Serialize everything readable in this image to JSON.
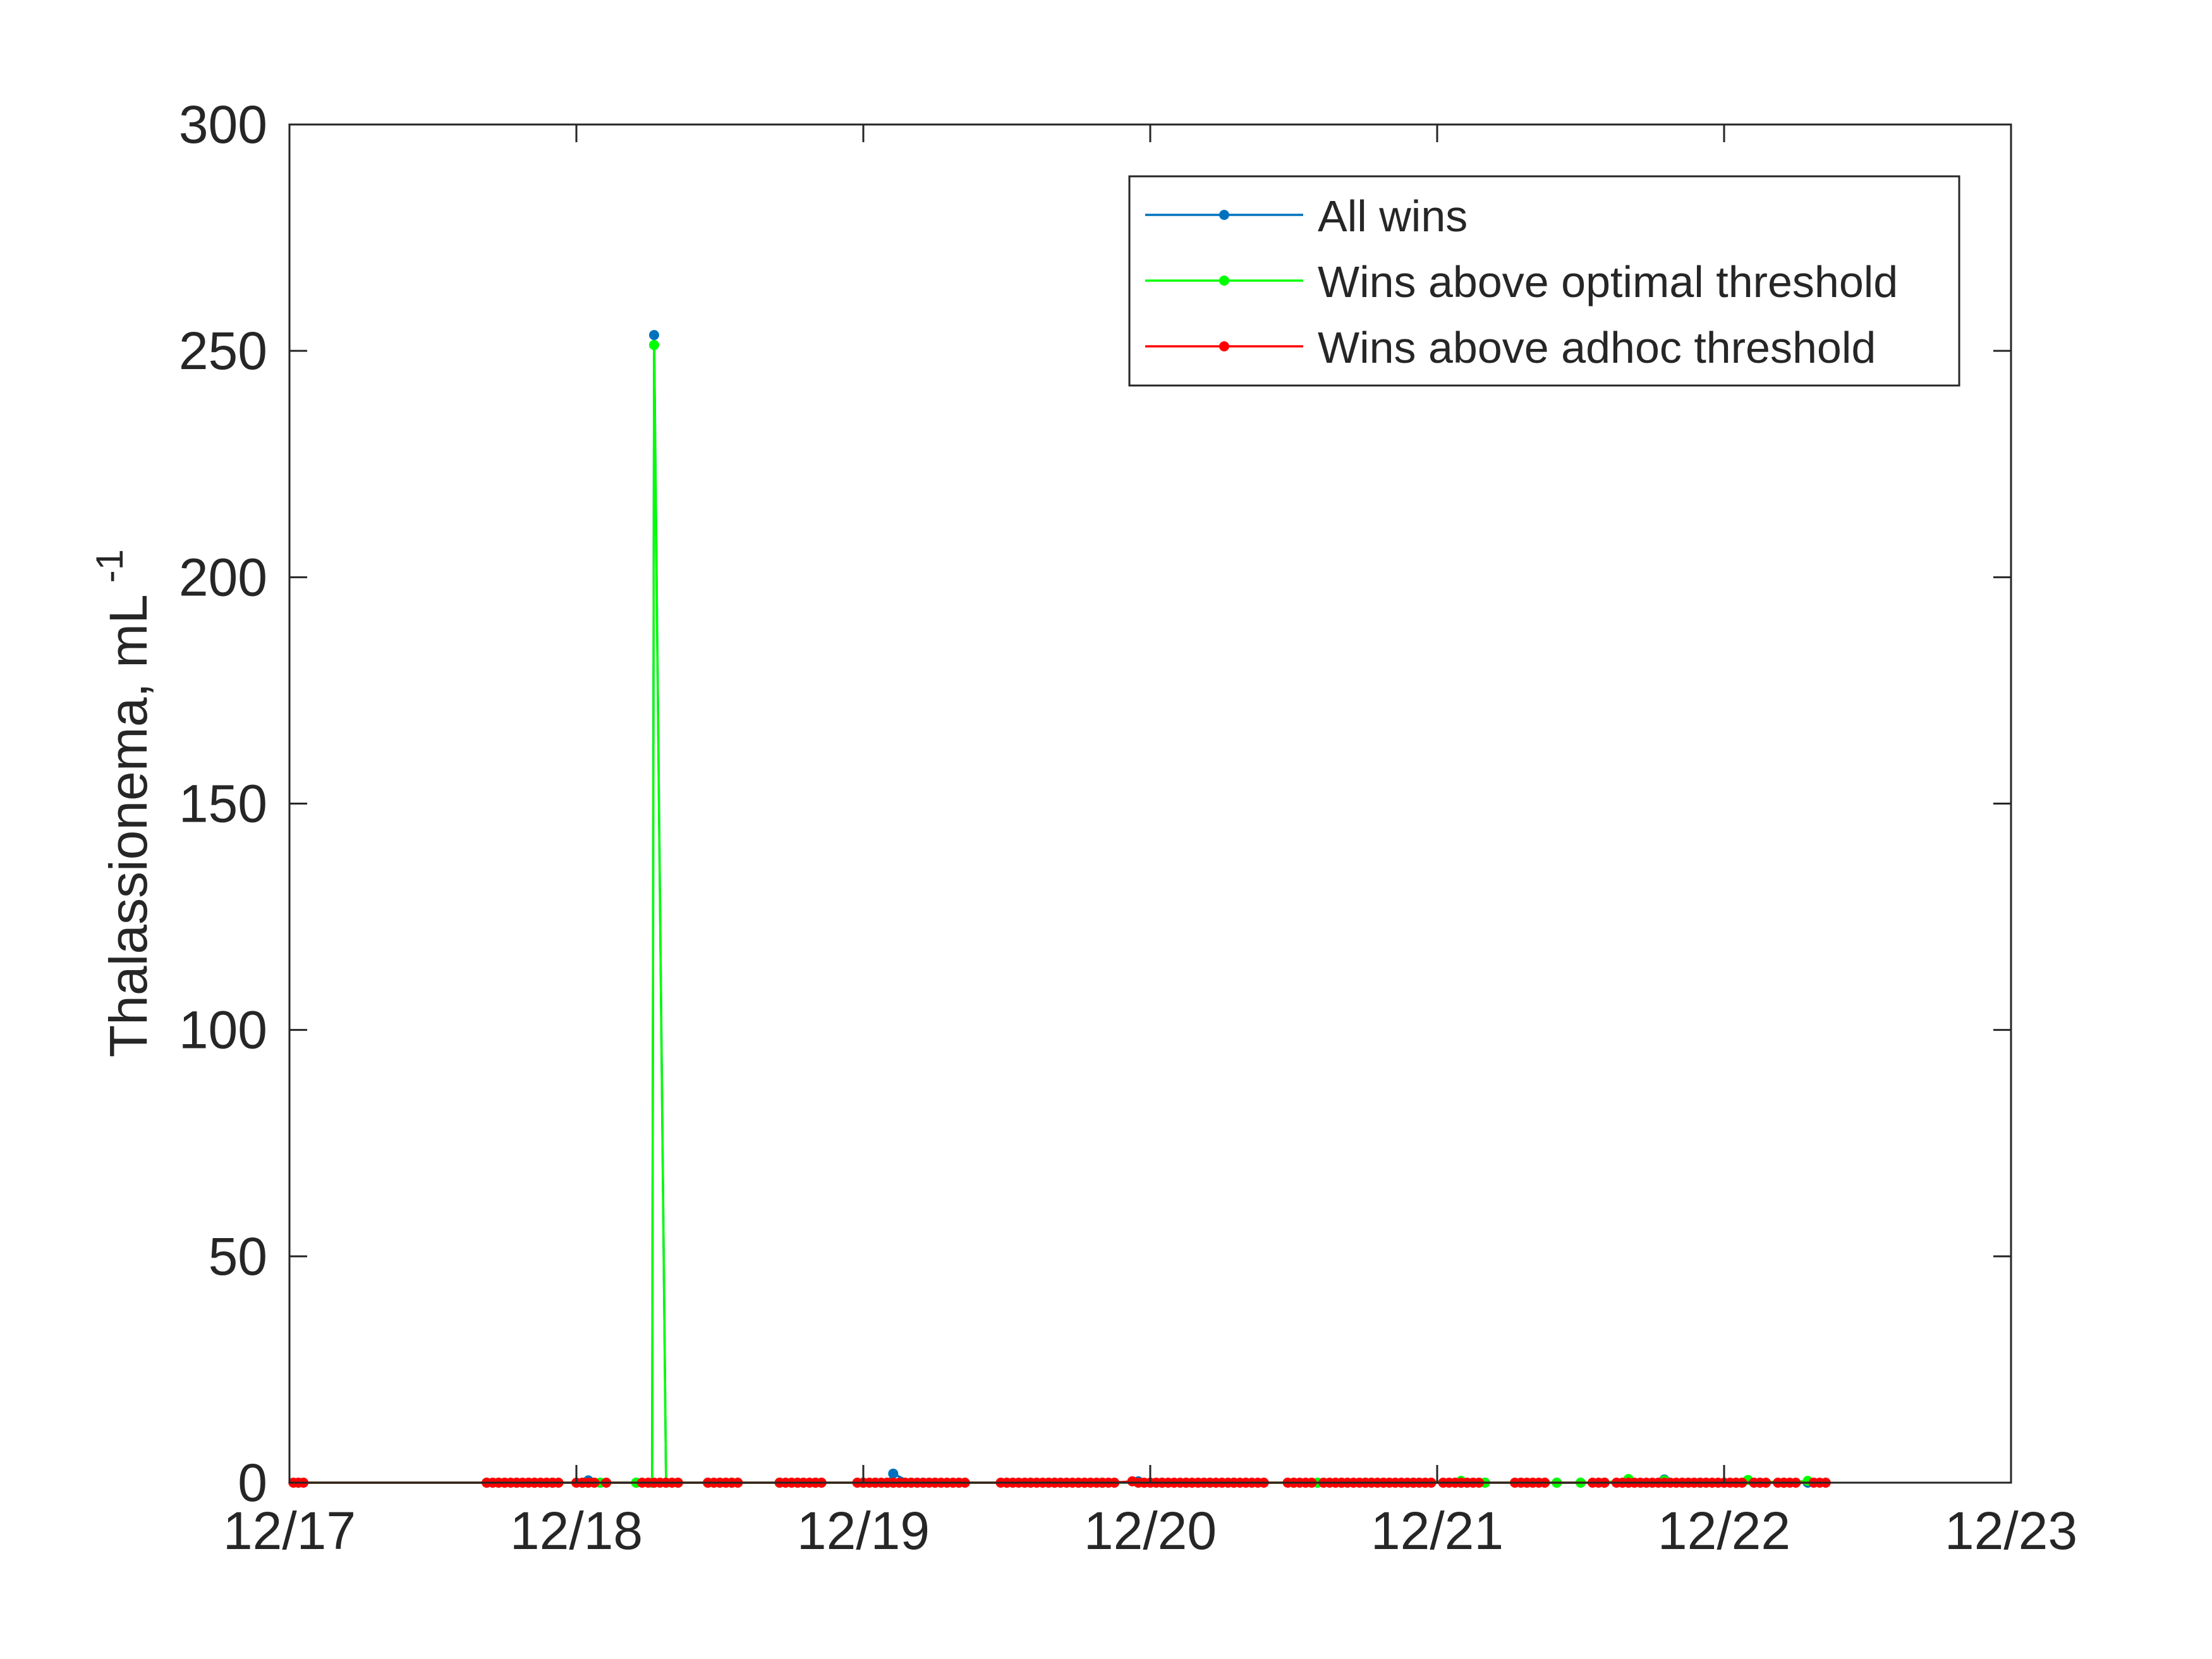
{
  "chart_data": {
    "type": "line",
    "title": "",
    "xlabel": "",
    "ylabel": "Thalassionema, mL",
    "ylabel_superscript": "-1",
    "xlim": [
      "12/17",
      "12/23"
    ],
    "ylim": [
      0,
      300
    ],
    "x_ticks": [
      "12/17",
      "12/18",
      "12/19",
      "12/20",
      "12/21",
      "12/22",
      "12/23"
    ],
    "y_ticks": [
      0,
      50,
      100,
      150,
      200,
      250,
      300
    ],
    "grid": false,
    "legend_position": "top-right",
    "series": [
      {
        "name": "All wins",
        "color": "#0072BD",
        "points": [
          [
            "12/17 00:45",
            0
          ],
          [
            "12/17 16:30",
            0
          ],
          [
            "12/17 17:30",
            0
          ],
          [
            "12/17 19:00",
            0
          ],
          [
            "12/17 20:30",
            0
          ],
          [
            "12/17 22:00",
            0
          ],
          [
            "12/18 00:30",
            0
          ],
          [
            "12/18 01:00",
            0.5
          ],
          [
            "12/18 02:00",
            0
          ],
          [
            "12/18 05:00",
            0
          ],
          [
            "12/18 06:20",
            0
          ],
          [
            "12/18 06:30",
            253.5
          ],
          [
            "12/18 07:30",
            0
          ],
          [
            "12/18 08:30",
            0
          ],
          [
            "12/18 11:00",
            0
          ],
          [
            "12/18 12:00",
            0
          ],
          [
            "12/18 13:00",
            0
          ],
          [
            "12/18 17:00",
            0
          ],
          [
            "12/18 18:30",
            0
          ],
          [
            "12/18 20:00",
            0
          ],
          [
            "12/19 00:00",
            0
          ],
          [
            "12/19 01:00",
            0
          ],
          [
            "12/19 02:00",
            0
          ],
          [
            "12/19 02:30",
            2
          ],
          [
            "12/19 04:00",
            0
          ],
          [
            "12/19 06:00",
            0
          ],
          [
            "12/19 08:00",
            0
          ],
          [
            "12/19 12:00",
            0
          ],
          [
            "12/19 14:00",
            0
          ],
          [
            "12/19 16:00",
            0
          ],
          [
            "12/19 18:00",
            0
          ],
          [
            "12/19 20:00",
            0
          ],
          [
            "12/19 23:00",
            0.3
          ],
          [
            "12/20 01:00",
            0
          ],
          [
            "12/20 03:00",
            0
          ],
          [
            "12/20 05:00",
            0
          ],
          [
            "12/20 07:00",
            0
          ],
          [
            "12/20 12:00",
            0
          ],
          [
            "12/20 14:00",
            0
          ],
          [
            "12/20 16:00",
            0
          ],
          [
            "12/20 18:00",
            0
          ],
          [
            "12/20 22:00",
            0
          ],
          [
            "12/21 02:00",
            0
          ],
          [
            "12/21 04:00",
            0
          ],
          [
            "12/21 10:00",
            0
          ],
          [
            "12/21 12:00",
            0
          ],
          [
            "12/21 14:00",
            0
          ],
          [
            "12/21 16:00",
            0
          ],
          [
            "12/21 19:00",
            0.7
          ],
          [
            "12/21 22:00",
            0
          ],
          [
            "12/22 01:00",
            0
          ],
          [
            "12/22 03:00",
            0
          ],
          [
            "12/22 05:00",
            0
          ],
          [
            "12/22 07:00",
            0
          ]
        ]
      },
      {
        "name": "Wins above optimal threshold",
        "color": "#00FF00",
        "points": [
          [
            "12/17 00:45",
            0
          ],
          [
            "12/17 16:30",
            0
          ],
          [
            "12/17 17:30",
            0
          ],
          [
            "12/17 19:00",
            0
          ],
          [
            "12/17 20:30",
            0
          ],
          [
            "12/17 22:00",
            0
          ],
          [
            "12/18 00:30",
            0
          ],
          [
            "12/18 01:00",
            0
          ],
          [
            "12/18 02:00",
            0
          ],
          [
            "12/18 05:00",
            0
          ],
          [
            "12/18 06:20",
            0
          ],
          [
            "12/18 06:30",
            251.3
          ],
          [
            "12/18 07:30",
            0
          ],
          [
            "12/18 08:30",
            0
          ],
          [
            "12/18 11:00",
            0
          ],
          [
            "12/18 12:00",
            0
          ],
          [
            "12/18 13:00",
            0
          ],
          [
            "12/18 17:00",
            0
          ],
          [
            "12/18 18:30",
            0
          ],
          [
            "12/18 20:00",
            0
          ],
          [
            "12/19 00:00",
            0
          ],
          [
            "12/19 01:00",
            0
          ],
          [
            "12/19 02:00",
            0
          ],
          [
            "12/19 02:30",
            0
          ],
          [
            "12/19 04:00",
            0
          ],
          [
            "12/19 06:00",
            0
          ],
          [
            "12/19 08:00",
            0
          ],
          [
            "12/19 12:00",
            0
          ],
          [
            "12/19 14:00",
            0
          ],
          [
            "12/19 16:00",
            0
          ],
          [
            "12/19 18:00",
            0
          ],
          [
            "12/19 20:00",
            0
          ],
          [
            "12/19 23:00",
            0
          ],
          [
            "12/20 01:00",
            0
          ],
          [
            "12/20 03:00",
            0
          ],
          [
            "12/20 05:00",
            0
          ],
          [
            "12/20 07:00",
            0
          ],
          [
            "12/20 12:00",
            0
          ],
          [
            "12/20 14:00",
            0
          ],
          [
            "12/20 16:00",
            0
          ],
          [
            "12/20 18:00",
            0
          ],
          [
            "12/20 22:00",
            0
          ],
          [
            "12/21 02:00",
            0.4
          ],
          [
            "12/21 04:00",
            0
          ],
          [
            "12/21 10:00",
            0
          ],
          [
            "12/21 12:00",
            0
          ],
          [
            "12/21 14:00",
            0
          ],
          [
            "12/21 16:00",
            0.8
          ],
          [
            "12/21 19:00",
            0.5
          ],
          [
            "12/21 22:00",
            0
          ],
          [
            "12/22 01:00",
            0
          ],
          [
            "12/22 02:00",
            0.6
          ],
          [
            "12/22 05:00",
            0
          ],
          [
            "12/22 07:00",
            0.4
          ]
        ]
      },
      {
        "name": "Wins above adhoc threshold",
        "color": "#FF0000",
        "points": [
          [
            "12/17 00:20",
            0
          ],
          [
            "12/17 00:45",
            0
          ],
          [
            "12/17 01:10",
            0
          ],
          [
            "12/17 16:30",
            0
          ],
          [
            "12/17 17:00",
            0
          ],
          [
            "12/17 17:30",
            0
          ],
          [
            "12/17 18:00",
            0
          ],
          [
            "12/17 18:30",
            0
          ],
          [
            "12/17 19:00",
            0
          ],
          [
            "12/17 19:30",
            0
          ],
          [
            "12/17 20:00",
            0
          ],
          [
            "12/17 20:30",
            0
          ],
          [
            "12/17 21:00",
            0
          ],
          [
            "12/17 21:30",
            0
          ],
          [
            "12/17 22:00",
            0
          ],
          [
            "12/17 22:30",
            0
          ],
          [
            "12/18 00:00",
            0
          ],
          [
            "12/18 00:30",
            0
          ],
          [
            "12/18 01:00",
            0
          ],
          [
            "12/18 01:30",
            0
          ],
          [
            "12/18 02:30",
            0
          ],
          [
            "12/18 05:30",
            0
          ],
          [
            "12/18 06:00",
            0
          ],
          [
            "12/18 06:30",
            0
          ],
          [
            "12/18 07:00",
            0
          ],
          [
            "12/18 07:30",
            0
          ],
          [
            "12/18 08:00",
            0
          ],
          [
            "12/18 08:30",
            0
          ],
          [
            "12/18 11:00",
            0
          ],
          [
            "12/18 11:30",
            0
          ],
          [
            "12/18 12:00",
            0
          ],
          [
            "12/18 12:30",
            0
          ],
          [
            "12/18 13:00",
            0
          ],
          [
            "12/18 13:30",
            0
          ],
          [
            "12/18 17:00",
            0
          ],
          [
            "12/18 17:30",
            0
          ],
          [
            "12/18 18:00",
            0
          ],
          [
            "12/18 18:30",
            0
          ],
          [
            "12/18 19:00",
            0
          ],
          [
            "12/18 19:30",
            0
          ],
          [
            "12/18 20:00",
            0
          ],
          [
            "12/18 20:30",
            0
          ],
          [
            "12/18 23:30",
            0
          ],
          [
            "12/19 00:00",
            0
          ],
          [
            "12/19 00:30",
            0
          ],
          [
            "12/19 01:00",
            0
          ],
          [
            "12/19 01:30",
            0
          ],
          [
            "12/19 02:00",
            0
          ],
          [
            "12/19 02:30",
            0
          ],
          [
            "12/19 03:00",
            0
          ],
          [
            "12/19 03:30",
            0
          ],
          [
            "12/19 04:00",
            0
          ],
          [
            "12/19 04:30",
            0
          ],
          [
            "12/19 05:00",
            0
          ],
          [
            "12/19 05:30",
            0
          ],
          [
            "12/19 06:00",
            0
          ],
          [
            "12/19 06:30",
            0
          ],
          [
            "12/19 07:00",
            0
          ],
          [
            "12/19 07:30",
            0
          ],
          [
            "12/19 08:00",
            0
          ],
          [
            "12/19 08:30",
            0
          ],
          [
            "12/19 11:30",
            0
          ],
          [
            "12/19 12:00",
            0
          ],
          [
            "12/19 12:30",
            0
          ],
          [
            "12/19 13:00",
            0
          ],
          [
            "12/19 13:30",
            0
          ],
          [
            "12/19 14:00",
            0
          ],
          [
            "12/19 14:30",
            0
          ],
          [
            "12/19 15:00",
            0
          ],
          [
            "12/19 15:30",
            0
          ],
          [
            "12/19 16:00",
            0
          ],
          [
            "12/19 16:30",
            0
          ],
          [
            "12/19 17:00",
            0
          ],
          [
            "12/19 17:30",
            0
          ],
          [
            "12/19 18:00",
            0
          ],
          [
            "12/19 18:30",
            0
          ],
          [
            "12/19 19:00",
            0
          ],
          [
            "12/19 19:30",
            0
          ],
          [
            "12/19 20:00",
            0
          ],
          [
            "12/19 20:30",
            0
          ],
          [
            "12/19 21:00",
            0
          ],
          [
            "12/19 22:30",
            0.3
          ],
          [
            "12/19 23:00",
            0
          ],
          [
            "12/19 23:30",
            0
          ],
          [
            "12/20 00:00",
            0
          ],
          [
            "12/20 00:30",
            0
          ],
          [
            "12/20 01:00",
            0
          ],
          [
            "12/20 01:30",
            0
          ],
          [
            "12/20 02:00",
            0
          ],
          [
            "12/20 02:30",
            0
          ],
          [
            "12/20 03:00",
            0
          ],
          [
            "12/20 03:30",
            0
          ],
          [
            "12/20 04:00",
            0
          ],
          [
            "12/20 04:30",
            0
          ],
          [
            "12/20 05:00",
            0
          ],
          [
            "12/20 05:30",
            0
          ],
          [
            "12/20 06:00",
            0
          ],
          [
            "12/20 06:30",
            0
          ],
          [
            "12/20 07:00",
            0
          ],
          [
            "12/20 07:30",
            0
          ],
          [
            "12/20 08:00",
            0
          ],
          [
            "12/20 08:30",
            0
          ],
          [
            "12/20 09:00",
            0
          ],
          [
            "12/20 09:30",
            0
          ],
          [
            "12/20 11:30",
            0
          ],
          [
            "12/20 12:00",
            0
          ],
          [
            "12/20 12:30",
            0
          ],
          [
            "12/20 13:00",
            0
          ],
          [
            "12/20 13:30",
            0
          ],
          [
            "12/20 14:30",
            0
          ],
          [
            "12/20 15:00",
            0
          ],
          [
            "12/20 15:30",
            0
          ],
          [
            "12/20 16:00",
            0
          ],
          [
            "12/20 16:30",
            0
          ],
          [
            "12/20 17:00",
            0
          ],
          [
            "12/20 17:30",
            0
          ],
          [
            "12/20 18:00",
            0
          ],
          [
            "12/20 18:30",
            0
          ],
          [
            "12/20 19:00",
            0
          ],
          [
            "12/20 19:30",
            0
          ],
          [
            "12/20 20:00",
            0
          ],
          [
            "12/20 20:30",
            0
          ],
          [
            "12/20 21:00",
            0
          ],
          [
            "12/20 21:30",
            0
          ],
          [
            "12/20 22:00",
            0
          ],
          [
            "12/20 22:30",
            0
          ],
          [
            "12/20 23:00",
            0
          ],
          [
            "12/20 23:30",
            0
          ],
          [
            "12/21 00:30",
            0
          ],
          [
            "12/21 01:00",
            0
          ],
          [
            "12/21 01:30",
            0
          ],
          [
            "12/21 02:00",
            0
          ],
          [
            "12/21 02:30",
            0
          ],
          [
            "12/21 03:00",
            0
          ],
          [
            "12/21 03:30",
            0
          ],
          [
            "12/21 06:30",
            0
          ],
          [
            "12/21 07:00",
            0
          ],
          [
            "12/21 07:30",
            0
          ],
          [
            "12/21 08:00",
            0
          ],
          [
            "12/21 08:30",
            0
          ],
          [
            "12/21 09:00",
            0
          ],
          [
            "12/21 13:00",
            0
          ],
          [
            "12/21 13:30",
            0
          ],
          [
            "12/21 14:00",
            0
          ],
          [
            "12/21 15:00",
            0
          ],
          [
            "12/21 15:30",
            0
          ],
          [
            "12/21 16:00",
            0
          ],
          [
            "12/21 16:30",
            0
          ],
          [
            "12/21 17:00",
            0
          ],
          [
            "12/21 17:30",
            0
          ],
          [
            "12/21 18:00",
            0
          ],
          [
            "12/21 18:30",
            0
          ],
          [
            "12/21 19:00",
            0
          ],
          [
            "12/21 19:30",
            0
          ],
          [
            "12/21 20:00",
            0
          ],
          [
            "12/21 20:30",
            0
          ],
          [
            "12/21 21:00",
            0
          ],
          [
            "12/21 21:30",
            0
          ],
          [
            "12/21 22:00",
            0
          ],
          [
            "12/21 22:30",
            0
          ],
          [
            "12/21 23:00",
            0
          ],
          [
            "12/21 23:30",
            0
          ],
          [
            "12/22 00:00",
            0
          ],
          [
            "12/22 00:30",
            0
          ],
          [
            "12/22 01:00",
            0
          ],
          [
            "12/22 01:30",
            0
          ],
          [
            "12/22 02:30",
            0
          ],
          [
            "12/22 03:00",
            0
          ],
          [
            "12/22 03:30",
            0
          ],
          [
            "12/22 04:30",
            0
          ],
          [
            "12/22 05:00",
            0
          ],
          [
            "12/22 05:30",
            0
          ],
          [
            "12/22 06:00",
            0
          ],
          [
            "12/22 07:30",
            0
          ],
          [
            "12/22 08:00",
            0
          ],
          [
            "12/22 08:30",
            0
          ]
        ]
      }
    ]
  }
}
